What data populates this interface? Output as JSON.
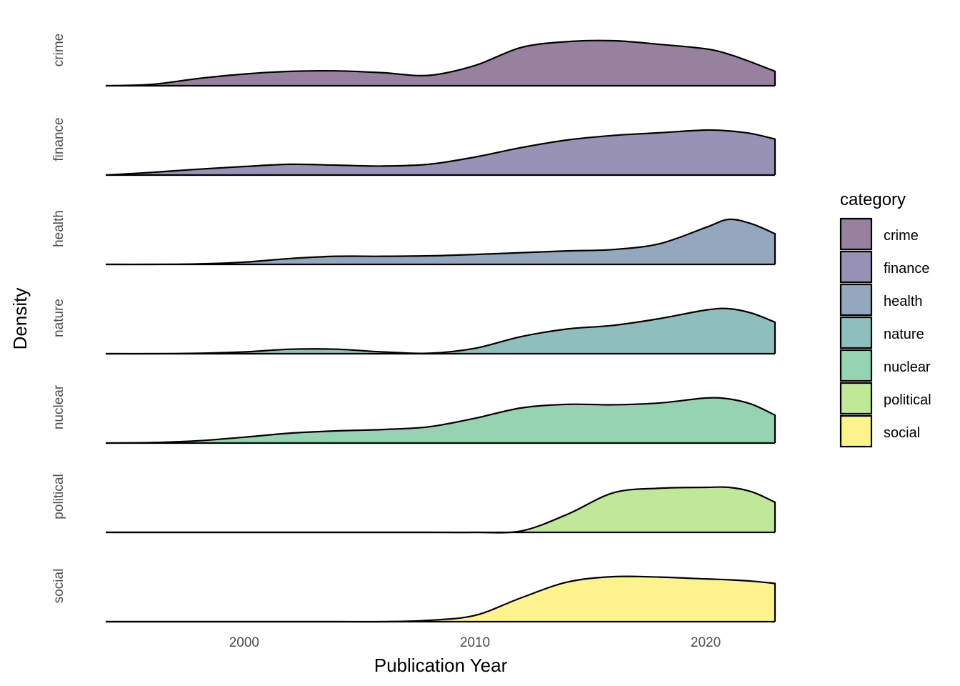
{
  "chart_data": {
    "type": "ridgeline",
    "xlabel": "Publication Year",
    "ylabel": "Density",
    "xlim": [
      1994,
      2023
    ],
    "xticks": [
      2000,
      2010,
      2020
    ],
    "grid": false,
    "legend": {
      "title": "category",
      "position": "right"
    },
    "x": [
      1994,
      1996,
      1998,
      2000,
      2002,
      2004,
      2006,
      2008,
      2010,
      2012,
      2014,
      2016,
      2018,
      2020,
      2021,
      2022,
      2023
    ],
    "series": [
      {
        "name": "crime",
        "color": "#98809f",
        "values": [
          0.0,
          0.03,
          0.16,
          0.26,
          0.32,
          0.33,
          0.29,
          0.23,
          0.45,
          0.85,
          0.98,
          1.0,
          0.92,
          0.82,
          0.7,
          0.52,
          0.32
        ]
      },
      {
        "name": "finance",
        "color": "#9893b6",
        "values": [
          0.0,
          0.06,
          0.13,
          0.19,
          0.24,
          0.22,
          0.2,
          0.24,
          0.4,
          0.61,
          0.78,
          0.88,
          0.94,
          1.0,
          0.98,
          0.92,
          0.8
        ]
      },
      {
        "name": "health",
        "color": "#93a8bc",
        "values": [
          0.0,
          0.0,
          0.01,
          0.05,
          0.13,
          0.18,
          0.18,
          0.19,
          0.22,
          0.26,
          0.3,
          0.33,
          0.46,
          0.82,
          1.0,
          0.9,
          0.68
        ]
      },
      {
        "name": "nature",
        "color": "#8fbfbc",
        "values": [
          0.0,
          0.0,
          0.01,
          0.04,
          0.1,
          0.1,
          0.04,
          0.01,
          0.12,
          0.38,
          0.55,
          0.63,
          0.78,
          0.97,
          1.0,
          0.9,
          0.7
        ]
      },
      {
        "name": "nuclear",
        "color": "#96d4b1",
        "values": [
          0.0,
          0.01,
          0.05,
          0.13,
          0.22,
          0.27,
          0.3,
          0.36,
          0.55,
          0.78,
          0.86,
          0.85,
          0.89,
          1.0,
          0.98,
          0.86,
          0.62
        ]
      },
      {
        "name": "political",
        "color": "#c1e899",
        "values": [
          0.0,
          0.0,
          0.0,
          0.0,
          0.0,
          0.0,
          0.0,
          0.0,
          0.0,
          0.03,
          0.4,
          0.88,
          0.98,
          1.0,
          1.0,
          0.9,
          0.67
        ]
      },
      {
        "name": "social",
        "color": "#fdf38c",
        "values": [
          0.0,
          0.0,
          0.0,
          0.0,
          0.0,
          0.0,
          0.0,
          0.03,
          0.14,
          0.53,
          0.88,
          1.0,
          0.99,
          0.95,
          0.93,
          0.9,
          0.85
        ]
      }
    ]
  }
}
